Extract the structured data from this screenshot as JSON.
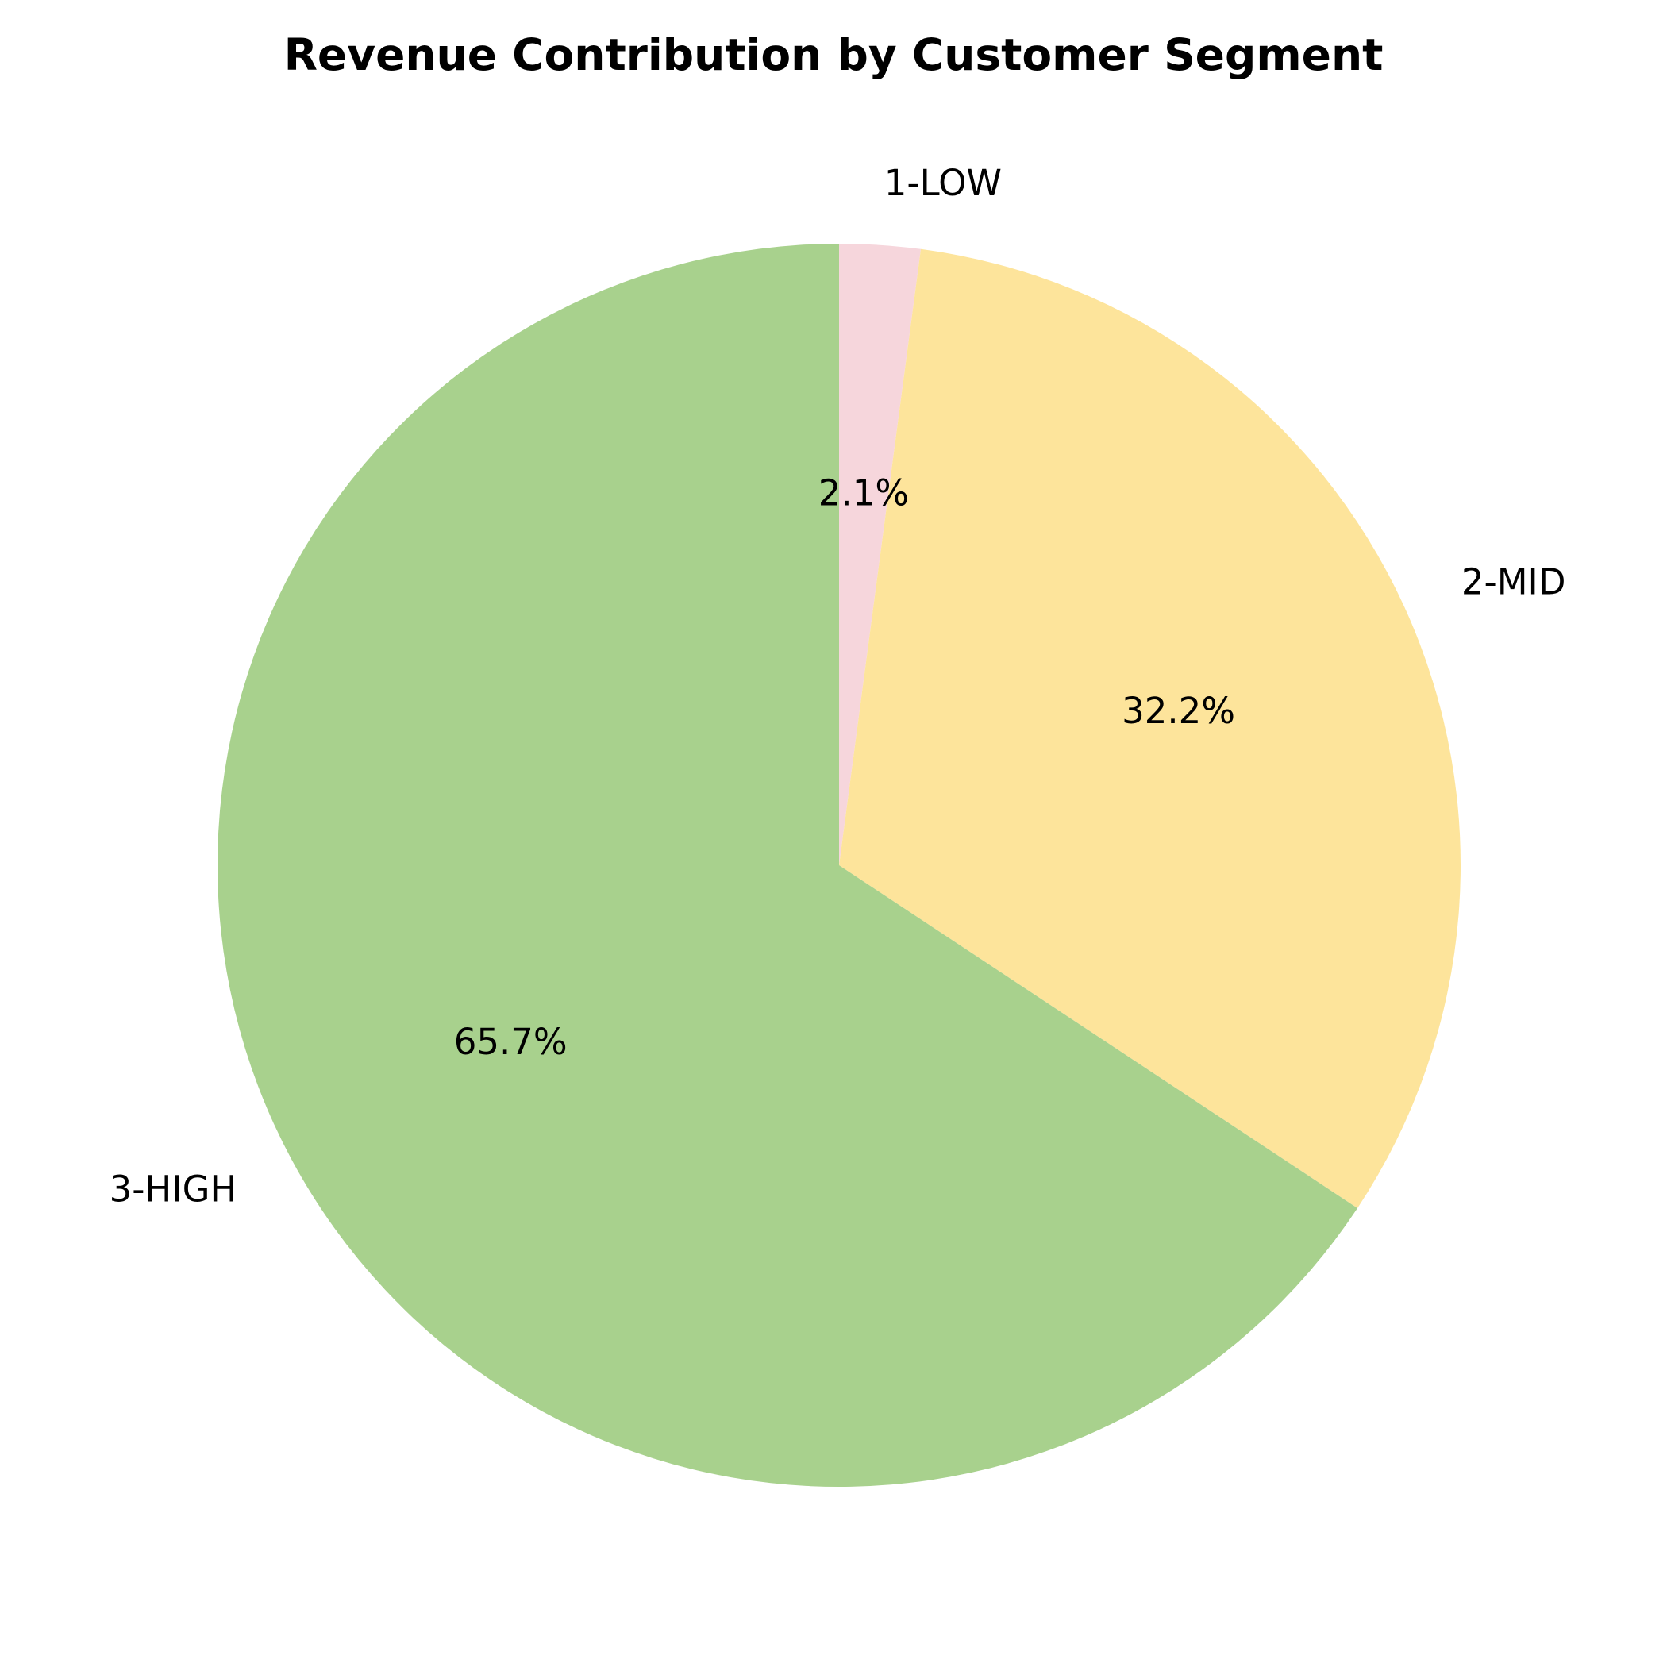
{
  "chart_data": {
    "type": "pie",
    "title": "Revenue Contribution by Customer Segment",
    "start_angle_deg": 90,
    "direction": "clockwise",
    "slices": [
      {
        "label": "1-LOW",
        "value": 2.1,
        "pct_label": "2.1%",
        "color": "#f6d6dc"
      },
      {
        "label": "2-MID",
        "value": 32.2,
        "pct_label": "32.2%",
        "color": "#fde49b"
      },
      {
        "label": "3-HIGH",
        "value": 65.7,
        "pct_label": "65.7%",
        "color": "#a8d18d"
      }
    ]
  }
}
